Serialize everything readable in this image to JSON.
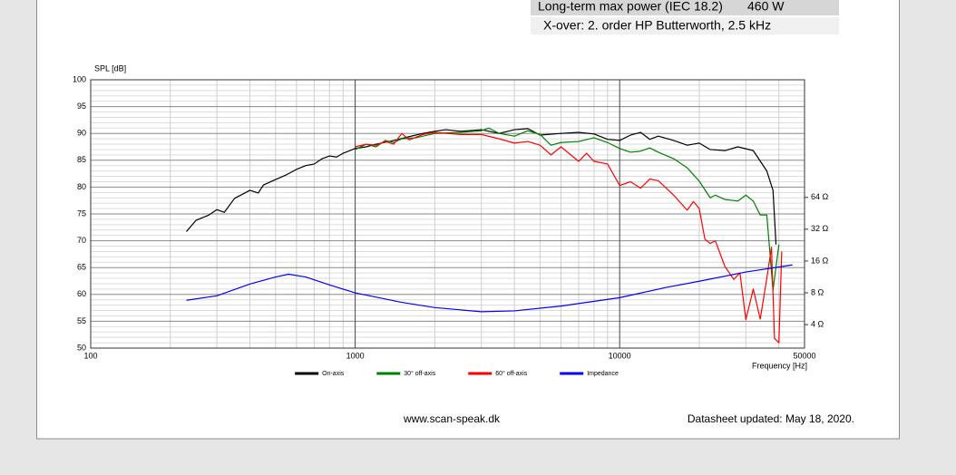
{
  "spec_table": {
    "rows": [
      [
        "Long-term max power (IEC 18.2)",
        "460 W"
      ]
    ],
    "note": "X-over: 2. order HP Butterworth, 2.5 kHz"
  },
  "chart_data": {
    "type": "line",
    "y_label": "SPL [dB]",
    "x_label": "Frequency [Hz]",
    "xscale": "log",
    "xlim": [
      100,
      50000
    ],
    "xticks": [
      100,
      1000,
      10000,
      50000
    ],
    "x_minor_ticks": [
      200,
      300,
      400,
      500,
      600,
      700,
      800,
      900,
      2000,
      3000,
      4000,
      5000,
      6000,
      7000,
      8000,
      9000,
      20000,
      30000,
      40000
    ],
    "ylim": [
      50,
      100
    ],
    "yticks": [
      50,
      55,
      60,
      65,
      70,
      75,
      80,
      85,
      90,
      95,
      100
    ],
    "y_minor_ticks": [
      51,
      52,
      53,
      54,
      56,
      57,
      58,
      59,
      61,
      62,
      63,
      64,
      66,
      67,
      68,
      69,
      71,
      72,
      73,
      74,
      76,
      77,
      78,
      79,
      81,
      82,
      83,
      84,
      86,
      87,
      88,
      89,
      91,
      92,
      93,
      94,
      96,
      97,
      98,
      99
    ],
    "y2scale": "log",
    "y2lim": [
      2.4,
      830
    ],
    "y2ticks": [
      {
        "value": 4,
        "label": "4 Ω"
      },
      {
        "value": 8,
        "label": "8 Ω"
      },
      {
        "value": 16,
        "label": "16 Ω"
      },
      {
        "value": 32,
        "label": "32 Ω"
      },
      {
        "value": 64,
        "label": "64 Ω"
      }
    ],
    "grid": true,
    "legend": "bottom",
    "series": [
      {
        "name": "On-axis",
        "color": "#000000",
        "x": [
          230,
          250,
          280,
          300,
          320,
          350,
          400,
          430,
          450,
          500,
          550,
          600,
          650,
          700,
          750,
          800,
          850,
          900,
          1000,
          1100,
          1200,
          1400,
          1600,
          1800,
          2000,
          2200,
          2500,
          3000,
          3500,
          4000,
          4500,
          5000,
          6000,
          7000,
          8000,
          9000,
          10000,
          11000,
          12000,
          13000,
          14000,
          16000,
          18000,
          20000,
          22000,
          25000,
          28000,
          32000,
          36000,
          38000,
          39000
        ],
        "values": [
          71.7,
          73.8,
          74.8,
          75.8,
          75.3,
          77.9,
          79.4,
          78.9,
          80.4,
          81.4,
          82.3,
          83.3,
          84.0,
          84.3,
          85.3,
          85.8,
          85.6,
          86.3,
          87.2,
          87.5,
          88.0,
          88.7,
          89.4,
          90.0,
          90.4,
          90.7,
          90.4,
          90.7,
          90.0,
          90.7,
          90.9,
          89.7,
          90.0,
          90.2,
          89.9,
          88.9,
          88.7,
          89.7,
          90.2,
          88.9,
          89.5,
          88.7,
          87.8,
          88.2,
          87.0,
          86.8,
          87.5,
          86.8,
          83.0,
          79.4,
          69.3
        ]
      },
      {
        "name": "30° off-axis",
        "color": "#008000",
        "x": [
          1000,
          1100,
          1200,
          1300,
          1400,
          1500,
          1700,
          2000,
          2500,
          3000,
          3200,
          3500,
          4000,
          4500,
          5000,
          5500,
          6000,
          7000,
          8000,
          9000,
          10000,
          11000,
          12000,
          13000,
          14000,
          16000,
          18000,
          20000,
          22000,
          23000,
          25000,
          28000,
          30000,
          32000,
          34000,
          36000,
          38000,
          40000
        ],
        "values": [
          87.0,
          88.0,
          87.5,
          88.7,
          88.3,
          89.0,
          89.2,
          90.0,
          90.2,
          90.5,
          91.0,
          90.0,
          89.5,
          90.5,
          89.8,
          87.8,
          88.3,
          88.5,
          89.2,
          88.3,
          87.2,
          86.5,
          86.7,
          87.3,
          86.5,
          85.3,
          83.6,
          81.1,
          78.0,
          78.5,
          77.7,
          77.4,
          78.5,
          77.4,
          74.8,
          74.8,
          60.8,
          69.3
        ]
      },
      {
        "name": "60° off-axis",
        "color": "#ff0000",
        "x": [
          1000,
          1100,
          1200,
          1300,
          1400,
          1500,
          1600,
          1800,
          2000,
          2500,
          3000,
          3500,
          4000,
          4500,
          5000,
          5500,
          6000,
          7000,
          7500,
          8000,
          9000,
          10000,
          11000,
          12000,
          13000,
          14000,
          16000,
          18000,
          19000,
          20000,
          21000,
          22000,
          23000,
          25000,
          27000,
          28500,
          30000,
          32000,
          34000,
          36000,
          37500,
          38500,
          40000,
          41000
        ],
        "values": [
          87.5,
          88.0,
          87.8,
          88.5,
          88.0,
          90.0,
          88.8,
          89.8,
          90.2,
          89.8,
          89.8,
          89.0,
          88.2,
          88.5,
          87.8,
          86.0,
          87.5,
          84.8,
          86.3,
          84.8,
          84.3,
          80.3,
          81.0,
          79.8,
          81.5,
          81.2,
          78.5,
          75.7,
          77.3,
          76.0,
          70.3,
          69.5,
          70.0,
          65.2,
          62.8,
          64.0,
          55.3,
          61.0,
          55.4,
          63.0,
          68.8,
          51.8,
          51.0,
          68.0
        ]
      },
      {
        "name": "Impedance",
        "color": "#0000ff",
        "axis": "y2",
        "x": [
          230,
          300,
          400,
          500,
          560,
          650,
          800,
          1000,
          1500,
          2000,
          3000,
          4000,
          6000,
          10000,
          15000,
          20000,
          30000,
          45000
        ],
        "values": [
          6.8,
          7.5,
          9.7,
          11.3,
          12.0,
          11.3,
          9.5,
          8.0,
          6.5,
          5.8,
          5.3,
          5.4,
          6.0,
          7.2,
          9.0,
          10.3,
          12.6,
          14.7
        ]
      }
    ]
  },
  "footer": {
    "website": "www.scan-speak.dk",
    "updated": "Datasheet updated: May 18, 2020."
  }
}
